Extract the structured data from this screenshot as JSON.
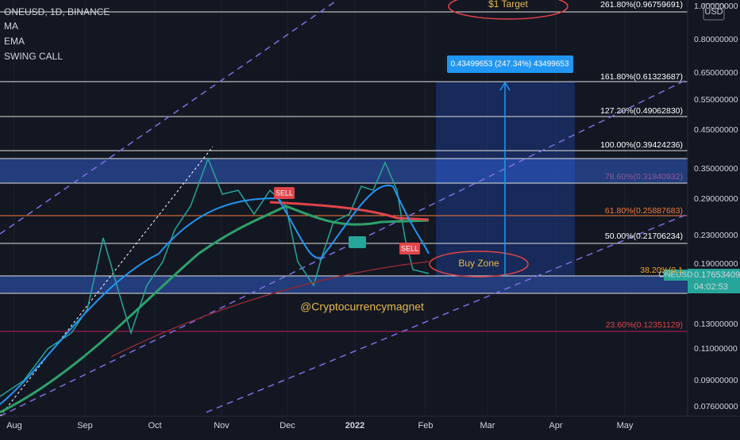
{
  "header": {
    "symbol": "ONEUSD, 1D, BINANCE",
    "indicators": [
      "MA",
      "EMA",
      "SWING CALL"
    ]
  },
  "price_axis": {
    "currency": "USD",
    "labels": [
      "1.00000000",
      "0.80000000",
      "0.65000000",
      "0.55000000",
      "0.45000000",
      "0.35000000",
      "0.29000000",
      "0.23000000",
      "0.19000000",
      "0.13000000",
      "0.11000000",
      "0.09000000",
      "0.07600000"
    ],
    "last_price": {
      "symbol": "ONEUSD",
      "price": "0.17653409",
      "countdown": "04:02:53"
    }
  },
  "time_axis": [
    "Aug",
    "Sep",
    "Oct",
    "Nov",
    "Dec",
    "2022",
    "Feb",
    "Mar",
    "Apr",
    "May"
  ],
  "fib_levels": [
    "261.80%(0.96759691)",
    "161.80%(0.61323687)",
    "127.20%(0.49062830)",
    "100.00%(0.39424236)",
    "78.60%(0.31840932)",
    "61.80%(0.25887683)",
    "50.00%(0.21706234)",
    "38.20%(0.1",
    "23.60%(0.12351129)"
  ],
  "annotations": {
    "target": "$1 Target",
    "buy_zone": "Buy Zone",
    "measure": "0.43499653 (247.34%) 43499653",
    "watermark": "@Cryptocurrencymagnet",
    "sell": [
      "SELL",
      "SELL"
    ]
  }
}
